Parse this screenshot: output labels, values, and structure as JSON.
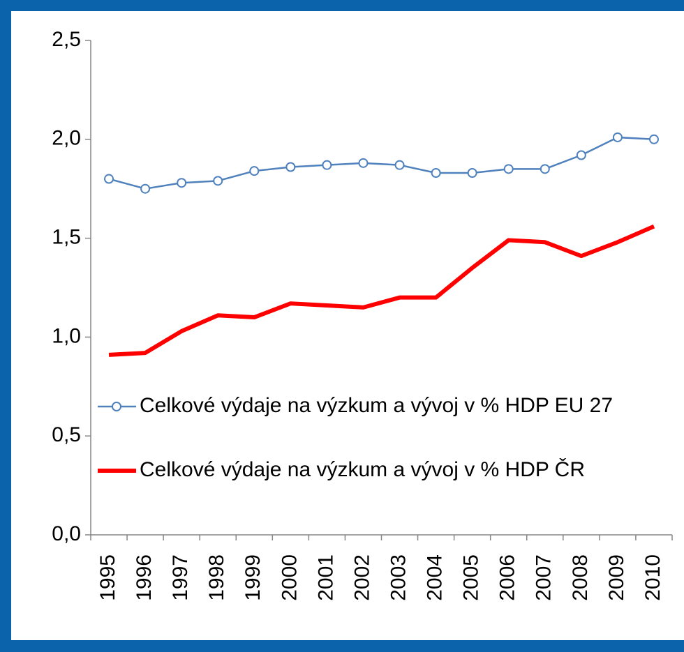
{
  "chart_data": {
    "type": "line",
    "categories": [
      "1995",
      "1996",
      "1997",
      "1998",
      "1999",
      "2000",
      "2001",
      "2002",
      "2003",
      "2004",
      "2005",
      "2006",
      "2007",
      "2008",
      "2009",
      "2010"
    ],
    "series": [
      {
        "name": "Celkové výdaje na výzkum a vývoj v % HDP EU 27",
        "color": "#4f81bd",
        "marker": "circle",
        "values": [
          1.8,
          1.75,
          1.78,
          1.79,
          1.84,
          1.86,
          1.87,
          1.88,
          1.87,
          1.83,
          1.83,
          1.85,
          1.85,
          1.92,
          2.01,
          2.0
        ]
      },
      {
        "name": "Celkové výdaje na výzkum a vývoj v % HDP ČR",
        "color": "#ff0000",
        "values": [
          0.91,
          0.92,
          1.03,
          1.11,
          1.1,
          1.17,
          1.16,
          1.15,
          1.2,
          1.2,
          1.35,
          1.49,
          1.48,
          1.41,
          1.48,
          1.56
        ]
      }
    ],
    "ylim": [
      0,
      2.5
    ],
    "yticks": [
      {
        "value": 0,
        "label": "0,0"
      },
      {
        "value": 0.5,
        "label": "0,5"
      },
      {
        "value": 1,
        "label": "1,0"
      },
      {
        "value": 1.5,
        "label": "1,5"
      },
      {
        "value": 2,
        "label": "2,0"
      },
      {
        "value": 2.5,
        "label": "2,5"
      }
    ],
    "grid": false
  }
}
